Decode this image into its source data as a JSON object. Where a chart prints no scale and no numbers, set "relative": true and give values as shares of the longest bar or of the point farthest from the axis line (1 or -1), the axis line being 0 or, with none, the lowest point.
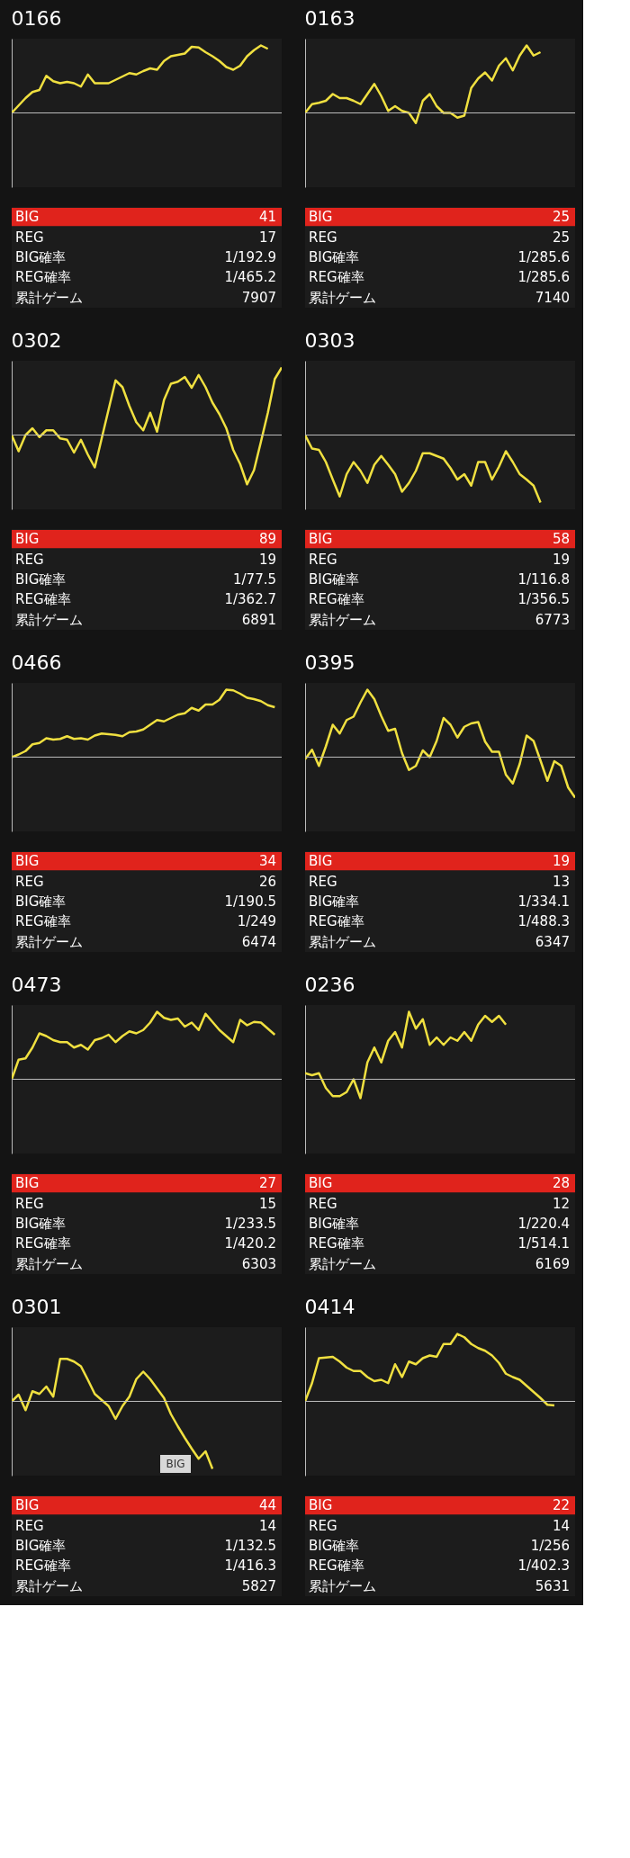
{
  "chart_data": [
    {
      "type": "line",
      "title": "0166",
      "relative": true,
      "categories": [
        null,
        null,
        null,
        null,
        null,
        null,
        null,
        null,
        null,
        null,
        null,
        null,
        null,
        null,
        null,
        null,
        null,
        null,
        null,
        null,
        null,
        null,
        null,
        null,
        null,
        null,
        null,
        null,
        null,
        null,
        null,
        null,
        null,
        null,
        null,
        null,
        null,
        null,
        null,
        null
      ],
      "series": [
        {
          "color": "#f0e040",
          "values": [
            0,
            0.11,
            0.22,
            0.31,
            0.34,
            0.55,
            0.47,
            0.44,
            0.46,
            0.44,
            0.39,
            0.57,
            0.44,
            0.44,
            0.44,
            0.49,
            0.54,
            0.59,
            0.57,
            0.62,
            0.66,
            0.64,
            0.77,
            0.84,
            0.86,
            0.88,
            0.98,
            0.97,
            0.9,
            0.84,
            0.77,
            0.68,
            0.64,
            0.7,
            0.84,
            0.93,
            1,
            0.95,
            null,
            null
          ]
        }
      ],
      "annotations": [
        "BIG",
        "41",
        "REG",
        "17",
        "BIG確率",
        "1/192.9",
        "REG確率",
        "1/465.2",
        "累計ゲーム",
        "7907"
      ]
    },
    {
      "type": "line",
      "title": "0163",
      "relative": true,
      "categories": [
        null,
        null,
        null,
        null,
        null,
        null,
        null,
        null,
        null,
        null,
        null,
        null,
        null,
        null,
        null,
        null,
        null,
        null,
        null,
        null,
        null,
        null,
        null,
        null,
        null,
        null,
        null,
        null,
        null,
        null,
        null,
        null,
        null,
        null,
        null,
        null,
        null,
        null,
        null,
        null
      ],
      "series": [
        {
          "color": "#f0e040",
          "values": [
            0,
            0.13,
            0.15,
            0.18,
            0.28,
            0.22,
            0.22,
            0.18,
            0.13,
            0.28,
            0.43,
            0.25,
            0.03,
            0.1,
            0.03,
            0,
            -0.15,
            0.18,
            0.28,
            0.1,
            0,
            0,
            -0.07,
            -0.04,
            0.37,
            0.51,
            0.6,
            0.48,
            0.7,
            0.81,
            0.63,
            0.85,
            1,
            0.85,
            0.9,
            null,
            null,
            null,
            null,
            null
          ]
        }
      ],
      "annotations": [
        "BIG",
        "25",
        "REG",
        "25",
        "BIG確率",
        "1/285.6",
        "REG確率",
        "1/285.6",
        "累計ゲーム",
        "7140"
      ]
    },
    {
      "type": "line",
      "title": "0302",
      "relative": true,
      "categories": [
        null,
        null,
        null,
        null,
        null,
        null,
        null,
        null,
        null,
        null,
        null,
        null,
        null,
        null,
        null,
        null,
        null,
        null,
        null,
        null,
        null,
        null,
        null,
        null,
        null,
        null,
        null,
        null,
        null,
        null,
        null,
        null,
        null,
        null,
        null,
        null,
        null,
        null,
        null,
        null
      ],
      "series": [
        {
          "color": "#f0e040",
          "values": [
            0,
            -0.24,
            0,
            0.1,
            -0.03,
            0.07,
            0.07,
            -0.05,
            -0.07,
            -0.26,
            -0.07,
            -0.29,
            -0.48,
            -0.05,
            0.38,
            0.81,
            0.71,
            0.43,
            0.19,
            0.07,
            0.33,
            0.05,
            0.52,
            0.76,
            0.79,
            0.86,
            0.7,
            0.89,
            0.71,
            0.48,
            0.31,
            0.1,
            -0.22,
            -0.43,
            -0.73,
            -0.52,
            -0.1,
            0.33,
            0.83,
            1
          ]
        }
      ],
      "annotations": [
        "BIG",
        "89",
        "REG",
        "19",
        "BIG確率",
        "1/77.5",
        "REG確率",
        "1/362.7",
        "累計ゲーム",
        "6891"
      ]
    },
    {
      "type": "line",
      "title": "0303",
      "relative": true,
      "categories": [
        null,
        null,
        null,
        null,
        null,
        null,
        null,
        null,
        null,
        null,
        null,
        null,
        null,
        null,
        null,
        null,
        null,
        null,
        null,
        null,
        null,
        null,
        null,
        null,
        null,
        null,
        null,
        null,
        null,
        null,
        null,
        null,
        null,
        null,
        null,
        null,
        null,
        null,
        null,
        null
      ],
      "series": [
        {
          "color": "#f0e040",
          "values": [
            0,
            -0.2,
            -0.22,
            -0.4,
            -0.66,
            -0.91,
            -0.58,
            -0.4,
            -0.53,
            -0.71,
            -0.44,
            -0.31,
            -0.44,
            -0.58,
            -0.84,
            -0.71,
            -0.53,
            -0.27,
            -0.27,
            -0.31,
            -0.35,
            -0.49,
            -0.66,
            -0.58,
            -0.75,
            -0.4,
            -0.4,
            -0.66,
            -0.47,
            -0.24,
            -0.4,
            -0.58,
            -0.66,
            -0.75,
            -1,
            null,
            null,
            null,
            null,
            null
          ]
        }
      ],
      "annotations": [
        "BIG",
        "58",
        "REG",
        "19",
        "BIG確率",
        "1/116.8",
        "REG確率",
        "1/356.5",
        "累計ゲーム",
        "6773"
      ]
    },
    {
      "type": "line",
      "title": "0466",
      "relative": true,
      "categories": [
        null,
        null,
        null,
        null,
        null,
        null,
        null,
        null,
        null,
        null,
        null,
        null,
        null,
        null,
        null,
        null,
        null,
        null,
        null,
        null,
        null,
        null,
        null,
        null,
        null,
        null,
        null,
        null,
        null,
        null,
        null,
        null,
        null,
        null,
        null,
        null,
        null,
        null,
        null,
        null
      ],
      "series": [
        {
          "color": "#f0e040",
          "values": [
            0,
            0.04,
            0.09,
            0.19,
            0.21,
            0.28,
            0.26,
            0.27,
            0.31,
            0.27,
            0.28,
            0.26,
            0.32,
            0.35,
            0.34,
            0.33,
            0.31,
            0.37,
            0.38,
            0.41,
            0.48,
            0.55,
            0.53,
            0.58,
            0.63,
            0.65,
            0.73,
            0.69,
            0.78,
            0.78,
            0.85,
            1,
            0.99,
            0.94,
            0.88,
            0.86,
            0.83,
            0.77,
            0.74,
            null
          ]
        }
      ],
      "annotations": [
        "BIG",
        "34",
        "REG",
        "26",
        "BIG確率",
        "1/190.5",
        "REG確率",
        "1/249",
        "累計ゲーム",
        "6474"
      ]
    },
    {
      "type": "line",
      "title": "0395",
      "relative": true,
      "categories": [
        null,
        null,
        null,
        null,
        null,
        null,
        null,
        null,
        null,
        null,
        null,
        null,
        null,
        null,
        null,
        null,
        null,
        null,
        null,
        null,
        null,
        null,
        null,
        null,
        null,
        null,
        null,
        null,
        null,
        null,
        null,
        null,
        null,
        null,
        null,
        null,
        null,
        null,
        null,
        null
      ],
      "series": [
        {
          "color": "#f0e040",
          "values": [
            -0.03,
            0.11,
            -0.13,
            0.16,
            0.48,
            0.35,
            0.55,
            0.6,
            0.81,
            1,
            0.86,
            0.61,
            0.39,
            0.42,
            0.06,
            -0.19,
            -0.13,
            0.1,
            0,
            0.24,
            0.58,
            0.48,
            0.29,
            0.45,
            0.5,
            0.52,
            0.23,
            0.08,
            0.08,
            -0.26,
            -0.39,
            -0.1,
            0.32,
            0.24,
            -0.05,
            -0.35,
            -0.06,
            -0.13,
            -0.45,
            -0.6
          ]
        }
      ],
      "annotations": [
        "BIG",
        "19",
        "REG",
        "13",
        "BIG確率",
        "1/334.1",
        "REG確率",
        "1/488.3",
        "累計ゲーム",
        "6347"
      ]
    },
    {
      "type": "line",
      "title": "0473",
      "relative": true,
      "categories": [
        null,
        null,
        null,
        null,
        null,
        null,
        null,
        null,
        null,
        null,
        null,
        null,
        null,
        null,
        null,
        null,
        null,
        null,
        null,
        null,
        null,
        null,
        null,
        null,
        null,
        null,
        null,
        null,
        null,
        null,
        null,
        null,
        null,
        null,
        null,
        null,
        null,
        null,
        null,
        null
      ],
      "series": [
        {
          "color": "#f0e040",
          "values": [
            0,
            0.29,
            0.31,
            0.47,
            0.68,
            0.64,
            0.58,
            0.55,
            0.55,
            0.47,
            0.51,
            0.44,
            0.58,
            0.61,
            0.66,
            0.55,
            0.64,
            0.71,
            0.68,
            0.73,
            0.84,
            1,
            0.91,
            0.88,
            0.9,
            0.78,
            0.84,
            0.73,
            0.97,
            0.85,
            0.73,
            0.64,
            0.55,
            0.88,
            0.8,
            0.85,
            0.84,
            0.75,
            0.66,
            null
          ]
        }
      ],
      "annotations": [
        "BIG",
        "27",
        "REG",
        "15",
        "BIG確率",
        "1/233.5",
        "REG確率",
        "1/420.2",
        "累計ゲーム",
        "6303"
      ]
    },
    {
      "type": "line",
      "title": "0236",
      "relative": true,
      "categories": [
        null,
        null,
        null,
        null,
        null,
        null,
        null,
        null,
        null,
        null,
        null,
        null,
        null,
        null,
        null,
        null,
        null,
        null,
        null,
        null,
        null,
        null,
        null,
        null,
        null,
        null,
        null,
        null,
        null,
        null,
        null,
        null,
        null,
        null,
        null,
        null,
        null,
        null,
        null,
        null
      ],
      "series": [
        {
          "color": "#f0e040",
          "values": [
            0.09,
            0.06,
            0.09,
            -0.13,
            -0.25,
            -0.25,
            -0.19,
            0,
            -0.28,
            0.25,
            0.47,
            0.25,
            0.57,
            0.7,
            0.47,
            1,
            0.75,
            0.89,
            0.51,
            0.62,
            0.51,
            0.62,
            0.57,
            0.7,
            0.57,
            0.81,
            0.94,
            0.85,
            0.94,
            0.81,
            null,
            null,
            null,
            null,
            null,
            null,
            null,
            null,
            null,
            null
          ]
        }
      ],
      "annotations": [
        "BIG",
        "28",
        "REG",
        "12",
        "BIG確率",
        "1/220.4",
        "REG確率",
        "1/514.1",
        "累計ゲーム",
        "6169"
      ]
    },
    {
      "type": "line",
      "title": "0301",
      "relative": true,
      "categories": [
        null,
        null,
        null,
        null,
        null,
        null,
        null,
        null,
        null,
        null,
        null,
        null,
        null,
        null,
        null,
        null,
        null,
        null,
        null,
        null,
        null,
        null,
        null,
        null,
        null,
        null,
        null,
        null,
        null,
        null,
        null,
        null,
        null,
        null,
        null,
        null,
        null,
        null,
        null,
        null
      ],
      "series": [
        {
          "color": "#f0e040",
          "values": [
            0,
            0.1,
            -0.13,
            0.15,
            0.11,
            0.22,
            0.07,
            0.63,
            0.63,
            0.59,
            0.52,
            0.32,
            0.11,
            0.02,
            -0.07,
            -0.26,
            -0.07,
            0.07,
            0.33,
            0.44,
            0.33,
            0.19,
            0.05,
            -0.19,
            -0.37,
            -0.54,
            -0.7,
            -0.85,
            -0.74,
            -1,
            null,
            null,
            null,
            null,
            null,
            null,
            null,
            null,
            null,
            null
          ]
        }
      ],
      "annotations": [
        "BIG",
        "44",
        "REG",
        "14",
        "BIG確率",
        "1/132.5",
        "REG確率",
        "1/416.3",
        "累計ゲーム",
        "5827",
        "BIG"
      ]
    },
    {
      "type": "line",
      "title": "0414",
      "relative": true,
      "categories": [
        null,
        null,
        null,
        null,
        null,
        null,
        null,
        null,
        null,
        null,
        null,
        null,
        null,
        null,
        null,
        null,
        null,
        null,
        null,
        null,
        null,
        null,
        null,
        null,
        null,
        null,
        null,
        null,
        null,
        null,
        null,
        null,
        null,
        null,
        null,
        null,
        null,
        null,
        null,
        null
      ],
      "series": [
        {
          "color": "#f0e040",
          "values": [
            0,
            0.27,
            0.64,
            0.65,
            0.66,
            0.59,
            0.5,
            0.45,
            0.45,
            0.36,
            0.3,
            0.32,
            0.27,
            0.55,
            0.36,
            0.59,
            0.55,
            0.64,
            0.68,
            0.66,
            0.85,
            0.85,
            1,
            0.95,
            0.85,
            0.79,
            0.75,
            0.68,
            0.57,
            0.41,
            0.36,
            0.32,
            0.23,
            0.14,
            0.05,
            -0.05,
            -0.06,
            null,
            null,
            null
          ]
        }
      ],
      "annotations": [
        "BIG",
        "22",
        "REG",
        "14",
        "BIG確率",
        "1/256",
        "REG確率",
        "1/402.3",
        "累計ゲーム",
        "5631"
      ]
    }
  ]
}
